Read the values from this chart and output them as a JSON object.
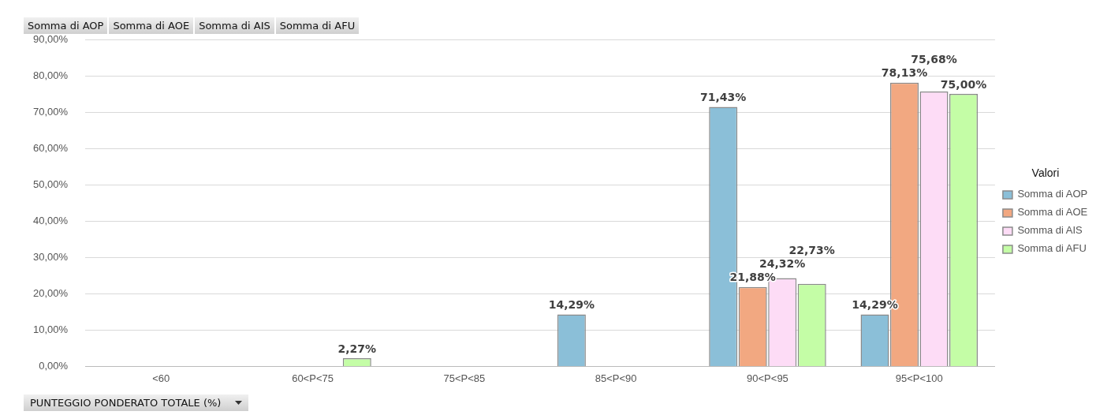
{
  "chart_data": {
    "type": "bar",
    "categories": [
      "<60",
      "60<P<75",
      "75<P<85",
      "85<P<90",
      "90<P<95",
      "95<P<100"
    ],
    "series": [
      {
        "name": "Somma di AOP",
        "color": "#8bbfd8",
        "values": [
          null,
          null,
          null,
          14.29,
          71.43,
          14.29
        ],
        "value_labels": [
          null,
          null,
          null,
          "14,29%",
          "71,43%",
          "14,29%"
        ]
      },
      {
        "name": "Somma di AOE",
        "color": "#f2a881",
        "values": [
          null,
          null,
          null,
          null,
          21.88,
          78.13
        ],
        "value_labels": [
          null,
          null,
          null,
          null,
          "21,88%",
          "78,13%"
        ]
      },
      {
        "name": "Somma di AIS",
        "color": "#fddcf6",
        "values": [
          null,
          null,
          null,
          null,
          24.32,
          75.68
        ],
        "value_labels": [
          null,
          null,
          null,
          null,
          "24,32%",
          "75,68%"
        ]
      },
      {
        "name": "Somma di AFU",
        "color": "#c4fda6",
        "values": [
          null,
          2.27,
          null,
          null,
          22.73,
          75.0
        ],
        "value_labels": [
          null,
          "2,27%",
          null,
          null,
          "22,73%",
          "75,00%"
        ]
      }
    ],
    "ylim": [
      0,
      90
    ],
    "yticks": [
      {
        "value": 0,
        "label": "0,00%"
      },
      {
        "value": 10,
        "label": "10,00%"
      },
      {
        "value": 20,
        "label": "20,00%"
      },
      {
        "value": 30,
        "label": "30,00%"
      },
      {
        "value": 40,
        "label": "40,00%"
      },
      {
        "value": 50,
        "label": "50,00%"
      },
      {
        "value": 60,
        "label": "60,00%"
      },
      {
        "value": 70,
        "label": "70,00%"
      },
      {
        "value": 80,
        "label": "80,00%"
      },
      {
        "value": 90,
        "label": "90,00%"
      }
    ],
    "grid": "y",
    "legend": "right",
    "legend_title": "Valori",
    "xlabel": "PUNTEGGIO PONDERATO TOTALE (%)",
    "annotations": [
      "Somma di AOP",
      "Somma di AOE",
      "Somma di AIS",
      "Somma di AFU"
    ]
  }
}
